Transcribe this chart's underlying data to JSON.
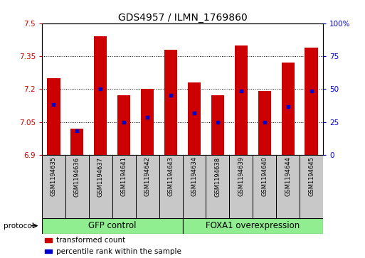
{
  "title": "GDS4957 / ILMN_1769860",
  "samples": [
    "GSM1194635",
    "GSM1194636",
    "GSM1194637",
    "GSM1194641",
    "GSM1194642",
    "GSM1194643",
    "GSM1194634",
    "GSM1194638",
    "GSM1194639",
    "GSM1194640",
    "GSM1194644",
    "GSM1194645"
  ],
  "bar_bottoms": [
    6.9,
    6.9,
    6.9,
    6.9,
    6.9,
    6.9,
    6.9,
    6.9,
    6.9,
    6.9,
    6.9,
    6.9
  ],
  "bar_tops": [
    7.25,
    7.02,
    7.44,
    7.17,
    7.2,
    7.38,
    7.23,
    7.17,
    7.4,
    7.19,
    7.32,
    7.39
  ],
  "percentile_vals": [
    7.13,
    7.01,
    7.2,
    7.05,
    7.07,
    7.17,
    7.09,
    7.05,
    7.19,
    7.05,
    7.12,
    7.19
  ],
  "bar_color": "#cc0000",
  "percentile_color": "#0000cc",
  "ylim_left": [
    6.9,
    7.5
  ],
  "yticks_left": [
    6.9,
    7.05,
    7.2,
    7.35,
    7.5
  ],
  "ytick_labels_left": [
    "6.9",
    "7.05",
    "7.2",
    "7.35",
    "7.5"
  ],
  "ylim_right": [
    0,
    100
  ],
  "yticks_right": [
    0,
    25,
    50,
    75,
    100
  ],
  "ytick_labels_right": [
    "0",
    "25",
    "50",
    "75",
    "100%"
  ],
  "group1_label": "GFP control",
  "group2_label": "FOXA1 overexpression",
  "group1_count": 6,
  "group2_count": 6,
  "protocol_label": "protocol",
  "legend_bar_label": "transformed count",
  "legend_pct_label": "percentile rank within the sample",
  "group_color": "#90ee90",
  "sample_box_color": "#c8c8c8",
  "bar_width": 0.55,
  "background_color": "#ffffff",
  "plot_bg_color": "#ffffff",
  "grid_color": "#000000",
  "tick_label_color_left": "#cc0000",
  "tick_label_color_right": "#0000cc",
  "title_fontsize": 10,
  "tick_fontsize": 7.5,
  "sample_fontsize": 6,
  "group_fontsize": 8.5,
  "legend_fontsize": 7.5
}
